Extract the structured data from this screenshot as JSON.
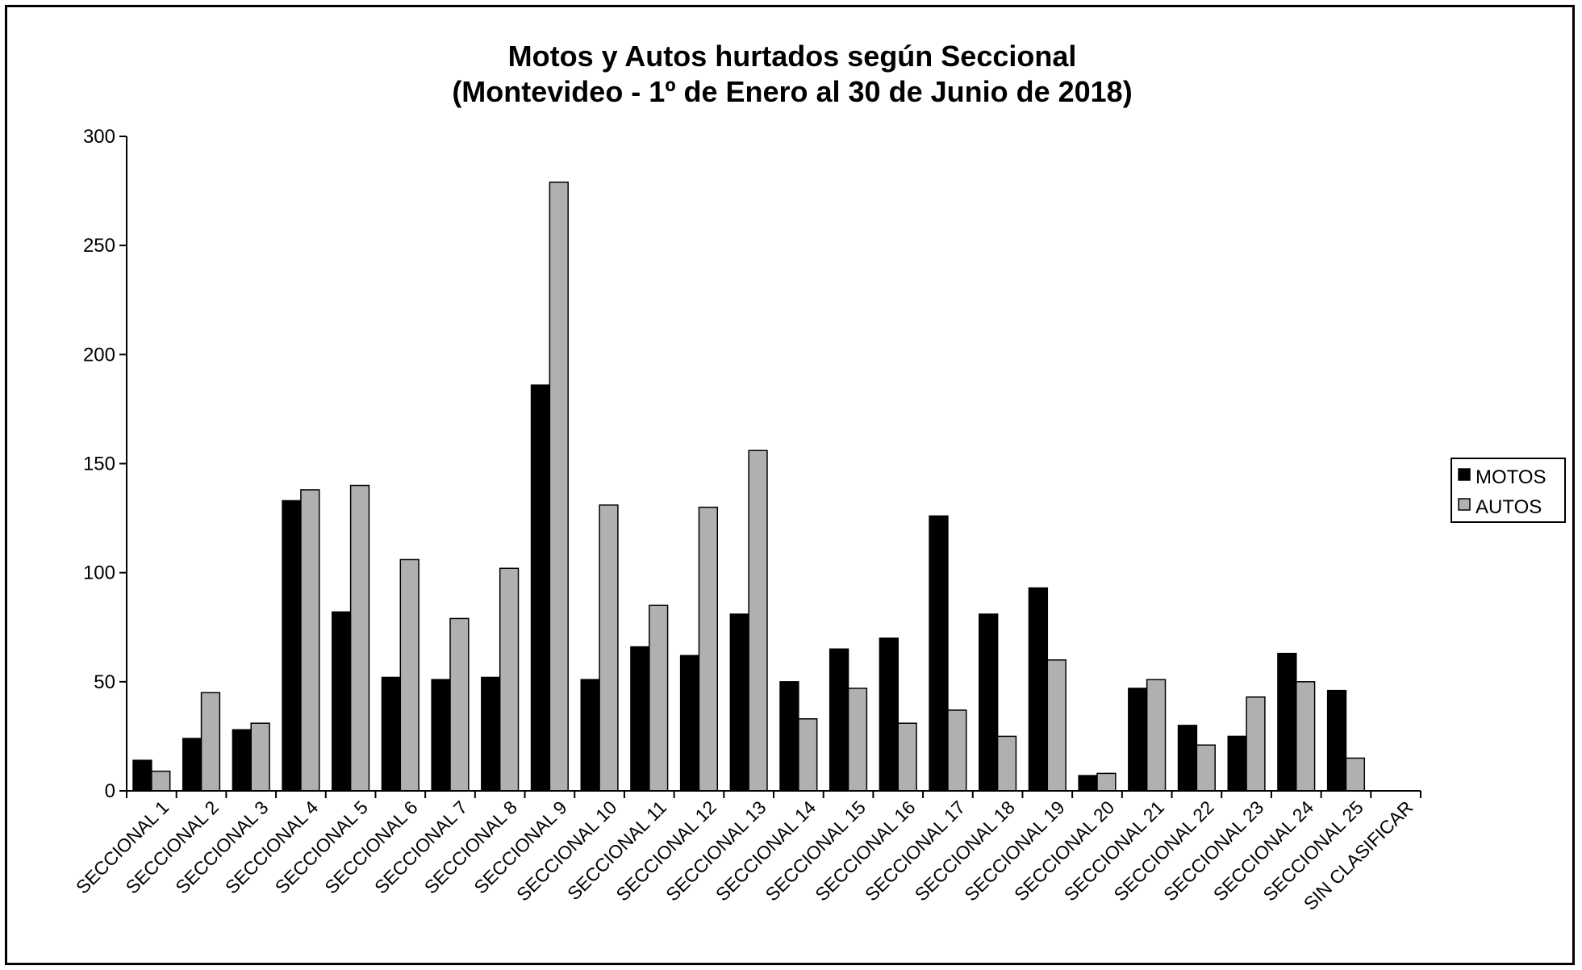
{
  "chart_data": {
    "type": "bar",
    "title": "Motos y Autos hurtados según Seccional",
    "subtitle": "(Montevideo - 1º de Enero al 30 de Junio de 2018)",
    "xlabel": "",
    "ylabel": "",
    "ylim": [
      0,
      300
    ],
    "yticks": [
      "0",
      "50",
      "100",
      "150",
      "200",
      "250",
      "300"
    ],
    "grid": false,
    "legend": "right",
    "categories": [
      "SECCIONAL 1",
      "SECCIONAL 2",
      "SECCIONAL 3",
      "SECCIONAL 4",
      "SECCIONAL 5",
      "SECCIONAL 6",
      "SECCIONAL 7",
      "SECCIONAL 8",
      "SECCIONAL 9",
      "SECCIONAL 10",
      "SECCIONAL 11",
      "SECCIONAL 12",
      "SECCIONAL 13",
      "SECCIONAL 14",
      "SECCIONAL 15",
      "SECCIONAL 16",
      "SECCIONAL 17",
      "SECCIONAL 18",
      "SECCIONAL 19",
      "SECCIONAL 20",
      "SECCIONAL 21",
      "SECCIONAL 22",
      "SECCIONAL 23",
      "SECCIONAL 24",
      "SECCIONAL 25",
      "SIN CLASIFICAR"
    ],
    "series": [
      {
        "name": "MOTOS",
        "color": "#000000",
        "values": [
          14,
          24,
          28,
          133,
          82,
          52,
          51,
          52,
          186,
          51,
          66,
          62,
          81,
          50,
          65,
          70,
          126,
          81,
          93,
          7,
          47,
          30,
          25,
          63,
          46,
          0
        ]
      },
      {
        "name": "AUTOS",
        "color": "#b0b0b0",
        "values": [
          9,
          45,
          31,
          138,
          140,
          106,
          79,
          102,
          279,
          131,
          85,
          130,
          156,
          33,
          47,
          31,
          37,
          25,
          60,
          8,
          51,
          21,
          43,
          50,
          15,
          0
        ]
      }
    ]
  }
}
